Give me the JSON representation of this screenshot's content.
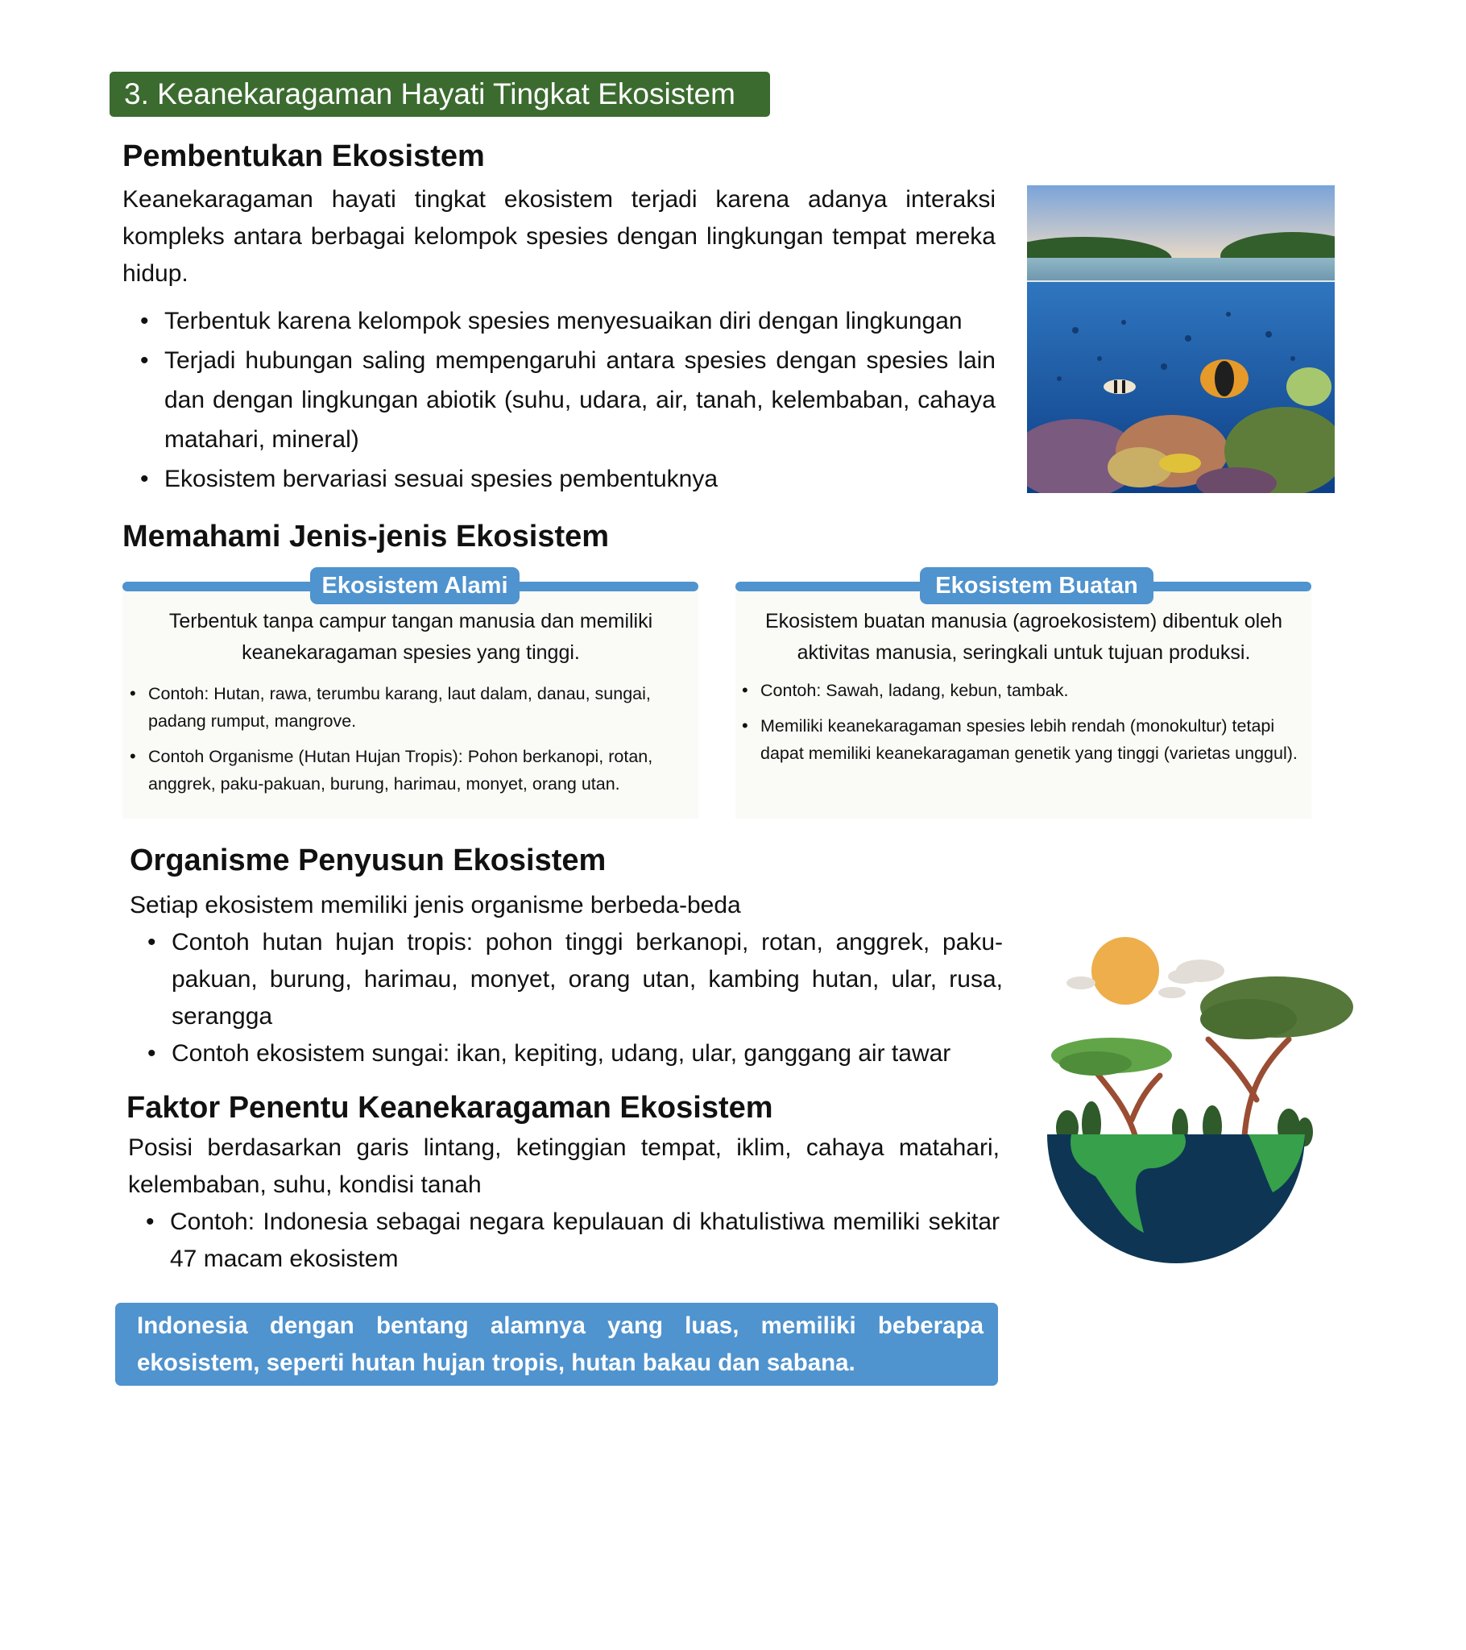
{
  "banner": {
    "title": "3. Keanekaragaman Hayati Tingkat Ekosistem"
  },
  "pembentukan": {
    "heading": "Pembentukan Ekosistem",
    "intro": "Keanekaragaman hayati tingkat ekosistem terjadi karena adanya interaksi kompleks antara berbagai kelompok spesies dengan lingkungan tempat mereka hidup.",
    "bullets": [
      "Terbentuk karena kelompok spesies menyesuaikan diri dengan lingkungan",
      "Terjadi hubungan saling mempengaruhi antara spesies dengan spesies lain dan dengan lingkungan abiotik (suhu, udara, air, tanah, kelembaban, cahaya matahari, mineral)",
      "Ekosistem bervariasi sesuai spesies pembentuknya"
    ]
  },
  "jenis": {
    "heading": "Memahami Jenis-jenis Ekosistem",
    "alami": {
      "title": "Ekosistem Alami",
      "desc": "Terbentuk tanpa campur tangan manusia dan memiliki keanekaragaman spesies yang tinggi.",
      "bullets": [
        "Contoh: Hutan, rawa, terumbu karang, laut dalam, danau, sungai, padang rumput, mangrove.",
        "Contoh Organisme (Hutan Hujan Tropis): Pohon berkanopi, rotan, anggrek, paku-pakuan, burung, harimau, monyet, orang utan."
      ]
    },
    "buatan": {
      "title": "Ekosistem Buatan",
      "desc": "Ekosistem buatan manusia (agroekosistem) dibentuk oleh aktivitas manusia, seringkali untuk tujuan produksi.",
      "bullets": [
        "Contoh: Sawah, ladang, kebun, tambak.",
        "Memiliki keanekaragaman spesies lebih rendah (monokultur) tetapi dapat memiliki keanekaragaman genetik yang tinggi (varietas unggul)."
      ]
    }
  },
  "organisme": {
    "heading": "Organisme Penyusun Ekosistem",
    "intro": "Setiap ekosistem memiliki jenis organisme berbeda-beda",
    "bullets": [
      "Contoh hutan hujan tropis: pohon tinggi berkanopi, rotan, anggrek, paku-pakuan, burung, harimau, monyet, orang utan, kambing hutan, ular, rusa, serangga",
      "Contoh ekosistem sungai: ikan, kepiting, udang, ular, ganggang air tawar"
    ]
  },
  "faktor": {
    "heading": "Faktor Penentu Keanekaragaman Ekosistem",
    "intro": "Posisi berdasarkan garis lintang, ketinggian tempat, iklim, cahaya matahari, kelembaban, suhu, kondisi tanah",
    "bullets": [
      "Contoh: Indonesia sebagai negara kepulauan di khatulistiwa memiliki sekitar 47 macam ekosistem"
    ]
  },
  "callout": {
    "text": "Indonesia dengan bentang alamnya yang luas, memiliki beberapa ekosistem, seperti hutan hujan tropis, hutan bakau dan sabana."
  },
  "colors": {
    "banner": "#3b6b2f",
    "accent_blue": "#4f93cf",
    "card_bg": "#fafaf7"
  },
  "images": {
    "reef_photo": "coral-reef-split-view-photo",
    "earth_illustration": "half-globe-with-trees-and-sun"
  }
}
